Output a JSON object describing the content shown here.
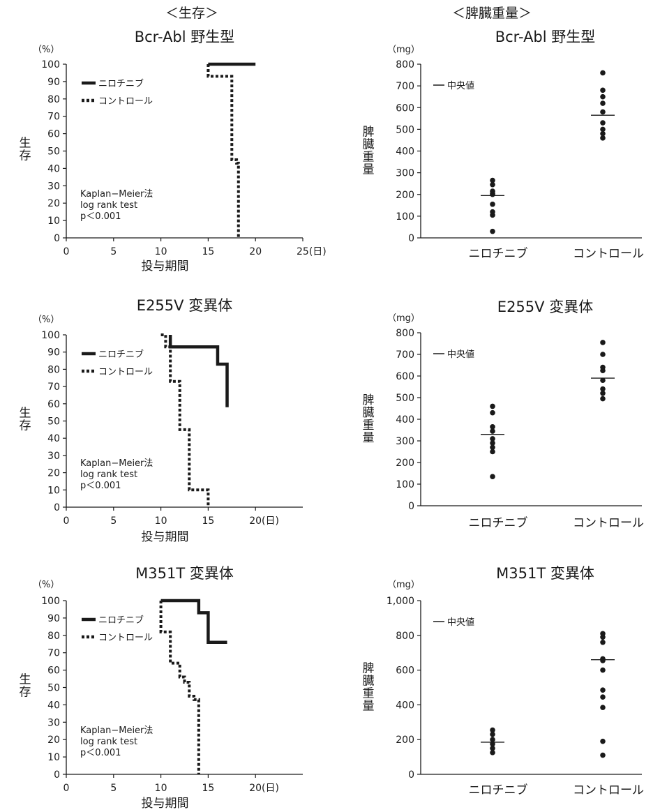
{
  "headers": {
    "survival": "＜生存＞",
    "spleen": "＜脾臓重量＞"
  },
  "chart_data": [
    {
      "type": "line",
      "subtype": "kaplan-meier",
      "title": "Bcr-Abl 野生型",
      "unit_label": "（%）",
      "ylabel": "生存",
      "xlabel": "投与期間",
      "x_unit_suffix": "(日)",
      "xlim": [
        0,
        25
      ],
      "ylim": [
        0,
        100
      ],
      "xticks": [
        0,
        5,
        10,
        15,
        20,
        25
      ],
      "yticks": [
        0,
        10,
        20,
        30,
        40,
        50,
        60,
        70,
        80,
        90,
        100
      ],
      "legend_position": "top-left",
      "annotation": [
        "Kaplan−Meier法",
        "log rank test",
        "p＜0.001"
      ],
      "series": [
        {
          "name": "ニロチニブ",
          "style": "solid",
          "x": [
            15,
            20
          ],
          "y": [
            100,
            100
          ]
        },
        {
          "name": "コントロール",
          "style": "dotted",
          "x": [
            15,
            15,
            16,
            17.5,
            17.5,
            18,
            18.2,
            18.2
          ],
          "y": [
            100,
            93,
            93,
            90,
            45,
            43,
            43,
            0
          ]
        }
      ]
    },
    {
      "type": "scatter",
      "title": "Bcr-Abl 野生型",
      "unit_label": "（mg）",
      "ylabel": "脾臓重量",
      "ylim": [
        0,
        800
      ],
      "yticks": [
        0,
        100,
        200,
        300,
        400,
        500,
        600,
        700,
        800
      ],
      "ytick_labels": [
        "0",
        "100",
        "200",
        "300",
        "400",
        "500",
        "600",
        "700",
        "800"
      ],
      "categories": [
        "ニロチニブ",
        "コントロール"
      ],
      "legend_position": "top-left",
      "median_label": "中央値",
      "points": [
        [
          265,
          245,
          215,
          205,
          200,
          155,
          120,
          105,
          30
        ],
        [
          760,
          680,
          650,
          620,
          580,
          530,
          500,
          480,
          460
        ]
      ],
      "medians": [
        195,
        565
      ]
    },
    {
      "type": "line",
      "subtype": "kaplan-meier",
      "title": "E255V 変異体",
      "unit_label": "（%）",
      "ylabel": "生存",
      "xlabel": "投与期間",
      "x_unit_suffix": "(日)",
      "xlim": [
        0,
        25
      ],
      "ylim": [
        0,
        100
      ],
      "xticks": [
        0,
        5,
        10,
        15,
        20
      ],
      "yticks": [
        0,
        10,
        20,
        30,
        40,
        50,
        60,
        70,
        80,
        90,
        100
      ],
      "legend_position": "top-left",
      "annotation": [
        "Kaplan−Meier法",
        "log rank test",
        "p＜0.001"
      ],
      "series": [
        {
          "name": "ニロチニブ",
          "style": "solid",
          "x": [
            11,
            11,
            16,
            16,
            17,
            17
          ],
          "y": [
            100,
            93,
            93,
            83,
            83,
            58
          ]
        },
        {
          "name": "コントロール",
          "style": "dotted",
          "x": [
            10,
            10.5,
            10.5,
            11,
            11,
            12,
            12,
            13,
            13,
            14,
            14,
            15,
            15
          ],
          "y": [
            100,
            93,
            93,
            93,
            73,
            73,
            45,
            45,
            10,
            10,
            10,
            10,
            0
          ]
        }
      ]
    },
    {
      "type": "scatter",
      "title": "E255V 変異体",
      "unit_label": "（mg）",
      "ylabel": "脾臓重量",
      "ylim": [
        0,
        800
      ],
      "yticks": [
        0,
        100,
        200,
        300,
        400,
        500,
        600,
        700,
        800
      ],
      "ytick_labels": [
        "0",
        "100",
        "200",
        "300",
        "400",
        "500",
        "600",
        "700",
        "800"
      ],
      "categories": [
        "ニロチニブ",
        "コントロール"
      ],
      "legend_position": "top-left",
      "median_label": "中央値",
      "points": [
        [
          460,
          430,
          365,
          345,
          310,
          290,
          270,
          250,
          135
        ],
        [
          755,
          700,
          640,
          625,
          580,
          540,
          520,
          495
        ]
      ],
      "medians": [
        330,
        590
      ]
    },
    {
      "type": "line",
      "subtype": "kaplan-meier",
      "title": "M351T 変異体",
      "unit_label": "（%）",
      "ylabel": "生存",
      "xlabel": "投与期間",
      "x_unit_suffix": "(日)",
      "xlim": [
        0,
        25
      ],
      "ylim": [
        0,
        100
      ],
      "xticks": [
        0,
        5,
        10,
        15,
        20
      ],
      "yticks": [
        0,
        10,
        20,
        30,
        40,
        50,
        60,
        70,
        80,
        90,
        100
      ],
      "legend_position": "top-left",
      "annotation": [
        "Kaplan−Meier法",
        "log rank test",
        "p＜0.001"
      ],
      "series": [
        {
          "name": "ニロチニブ",
          "style": "solid",
          "x": [
            10,
            14,
            14,
            15,
            15,
            17
          ],
          "y": [
            100,
            100,
            93,
            93,
            76,
            76
          ]
        },
        {
          "name": "コントロール",
          "style": "dotted",
          "x": [
            10,
            10,
            11,
            11,
            12,
            12,
            12.5,
            12.5,
            13,
            13,
            13.5,
            13.5,
            14,
            14
          ],
          "y": [
            100,
            82,
            82,
            64,
            64,
            56,
            56,
            53,
            53,
            45,
            45,
            43,
            43,
            0
          ]
        }
      ]
    },
    {
      "type": "scatter",
      "title": "M351T 変異体",
      "unit_label": "（mg）",
      "ylabel": "脾臓重量",
      "ylim": [
        0,
        1000
      ],
      "yticks": [
        0,
        200,
        400,
        600,
        800,
        1000
      ],
      "ytick_labels": [
        "0",
        "200",
        "400",
        "600",
        "800",
        "1,000"
      ],
      "categories": [
        "ニロチニブ",
        "コントロール"
      ],
      "legend_position": "top-left",
      "median_label": "中央値",
      "points": [
        [
          255,
          230,
          200,
          175,
          150,
          125
        ],
        [
          810,
          790,
          760,
          665,
          655,
          600,
          485,
          445,
          385,
          190,
          110
        ]
      ],
      "medians": [
        185,
        660
      ]
    }
  ]
}
